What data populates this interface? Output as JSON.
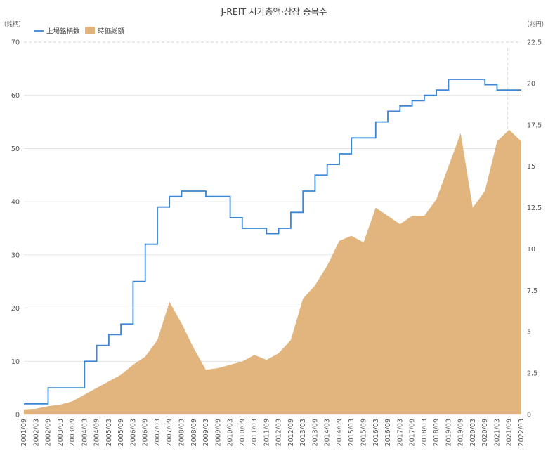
{
  "chart_data": {
    "type": "line+area",
    "title": "J-REIT 시가총액·상장 종목수",
    "left_unit": "(銘柄)",
    "right_unit": "(兆円)",
    "legend": [
      {
        "label": "上場銘柄数",
        "color": "#3b86d6",
        "kind": "line"
      },
      {
        "label": "時価総額",
        "color": "#e2b57f",
        "kind": "area"
      }
    ],
    "y_left": {
      "min": 0,
      "max": 70,
      "ticks": [
        "0",
        "10",
        "20",
        "30",
        "40",
        "50",
        "60",
        "70"
      ]
    },
    "y_right": {
      "min": 0,
      "max": 22.5,
      "ticks": [
        "0",
        "2.5",
        "5",
        "7.5",
        "10",
        "12.5",
        "15",
        "17.5",
        "20",
        "22.5"
      ]
    },
    "x_labels": [
      "2001/09",
      "2002/03",
      "2002/09",
      "2003/03",
      "2003/09",
      "2004/03",
      "2004/09",
      "2005/03",
      "2005/09",
      "2006/03",
      "2006/09",
      "2007/03",
      "2007/09",
      "2008/03",
      "2008/09",
      "2009/03",
      "2009/09",
      "2010/03",
      "2010/09",
      "2011/03",
      "2011/09",
      "2012/03",
      "2012/09",
      "2013/03",
      "2013/09",
      "2014/03",
      "2014/09",
      "2015/03",
      "2015/09",
      "2016/03",
      "2016/09",
      "2017/03",
      "2017/09",
      "2018/03",
      "2018/09",
      "2019/03",
      "2019/09",
      "2020/03",
      "2020/09",
      "2021/03",
      "2021/09",
      "2022/03"
    ],
    "grid": true,
    "series": [
      {
        "name": "上場銘柄数",
        "axis": "left",
        "points": [
          [
            "2001/09",
            2
          ],
          [
            "2002/03",
            2
          ],
          [
            "2002/09",
            5
          ],
          [
            "2003/03",
            5
          ],
          [
            "2003/09",
            5
          ],
          [
            "2004/03",
            10
          ],
          [
            "2004/09",
            13
          ],
          [
            "2005/03",
            15
          ],
          [
            "2005/09",
            17
          ],
          [
            "2006/03",
            25
          ],
          [
            "2006/09",
            32
          ],
          [
            "2007/03",
            39
          ],
          [
            "2007/09",
            41
          ],
          [
            "2008/03",
            42
          ],
          [
            "2008/09",
            42
          ],
          [
            "2009/03",
            41
          ],
          [
            "2009/09",
            41
          ],
          [
            "2010/03",
            37
          ],
          [
            "2010/09",
            35
          ],
          [
            "2011/03",
            35
          ],
          [
            "2011/09",
            34
          ],
          [
            "2012/03",
            35
          ],
          [
            "2012/09",
            38
          ],
          [
            "2013/03",
            42
          ],
          [
            "2013/09",
            45
          ],
          [
            "2014/03",
            47
          ],
          [
            "2014/09",
            49
          ],
          [
            "2015/03",
            52
          ],
          [
            "2015/09",
            52
          ],
          [
            "2016/03",
            55
          ],
          [
            "2016/09",
            57
          ],
          [
            "2017/03",
            58
          ],
          [
            "2017/09",
            59
          ],
          [
            "2018/03",
            60
          ],
          [
            "2018/09",
            61
          ],
          [
            "2019/03",
            63
          ],
          [
            "2019/09",
            63
          ],
          [
            "2020/03",
            63
          ],
          [
            "2020/09",
            62
          ],
          [
            "2021/03",
            61
          ],
          [
            "2021/09",
            61
          ],
          [
            "2022/03",
            61
          ]
        ]
      },
      {
        "name": "時価総額",
        "axis": "right",
        "points": [
          [
            "2001/09",
            0.3
          ],
          [
            "2002/03",
            0.35
          ],
          [
            "2002/09",
            0.5
          ],
          [
            "2003/03",
            0.6
          ],
          [
            "2003/09",
            0.8
          ],
          [
            "2004/03",
            1.2
          ],
          [
            "2004/09",
            1.6
          ],
          [
            "2005/03",
            2.0
          ],
          [
            "2005/09",
            2.4
          ],
          [
            "2006/03",
            3.0
          ],
          [
            "2006/09",
            3.5
          ],
          [
            "2007/03",
            4.5
          ],
          [
            "2007/09",
            6.8
          ],
          [
            "2008/03",
            5.5
          ],
          [
            "2008/09",
            4.0
          ],
          [
            "2009/03",
            2.7
          ],
          [
            "2009/09",
            2.8
          ],
          [
            "2010/03",
            3.0
          ],
          [
            "2010/09",
            3.2
          ],
          [
            "2011/03",
            3.6
          ],
          [
            "2011/09",
            3.3
          ],
          [
            "2012/03",
            3.7
          ],
          [
            "2012/09",
            4.5
          ],
          [
            "2013/03",
            7.0
          ],
          [
            "2013/09",
            7.8
          ],
          [
            "2014/03",
            9.0
          ],
          [
            "2014/09",
            10.5
          ],
          [
            "2015/03",
            10.8
          ],
          [
            "2015/09",
            10.4
          ],
          [
            "2016/03",
            12.5
          ],
          [
            "2016/09",
            12.0
          ],
          [
            "2017/03",
            11.5
          ],
          [
            "2017/09",
            12.0
          ],
          [
            "2018/03",
            12.0
          ],
          [
            "2018/09",
            13.0
          ],
          [
            "2019/03",
            15.0
          ],
          [
            "2019/09",
            17.0
          ],
          [
            "2020/03",
            12.5
          ],
          [
            "2020/09",
            13.5
          ],
          [
            "2021/03",
            16.5
          ],
          [
            "2021/09",
            17.2
          ],
          [
            "2022/03",
            16.5
          ]
        ]
      }
    ]
  }
}
